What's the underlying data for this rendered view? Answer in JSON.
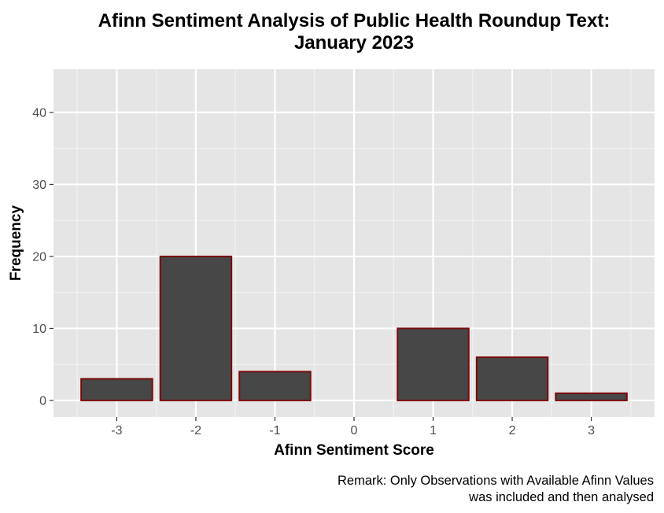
{
  "chart_data": {
    "type": "bar",
    "title_lines": [
      "Afinn Sentiment Analysis of Public Health Roundup Text:",
      "January 2023"
    ],
    "xlabel": "Afinn Sentiment Score",
    "ylabel": "Frequency",
    "caption_lines": [
      "Remark: Only Observations with Available Afinn Values",
      "was included and then analysed"
    ],
    "x": [
      -3,
      -2,
      -1,
      1,
      2,
      3
    ],
    "values": [
      3,
      20,
      4,
      10,
      6,
      1
    ],
    "x_ticks": [
      -3,
      -2,
      -1,
      0,
      1,
      2,
      3
    ],
    "x_tick_labels": [
      "-3",
      "-2",
      "-1",
      "0",
      "1",
      "2",
      "3"
    ],
    "y_ticks": [
      0,
      10,
      20,
      30,
      40
    ],
    "y_tick_labels": [
      "0",
      "10",
      "20",
      "30",
      "40"
    ],
    "xlim": [
      -3.8,
      3.8
    ],
    "ylim": [
      -2.3,
      46
    ],
    "bar_width": 0.9,
    "grid": true,
    "colors": {
      "panel_background": "#e5e5e5",
      "grid_major": "#ffffff",
      "grid_minor": "#f2f2f2",
      "bar_fill": "#474747",
      "bar_outline": "#7a0a0a",
      "tick_mark": "#333333"
    }
  }
}
